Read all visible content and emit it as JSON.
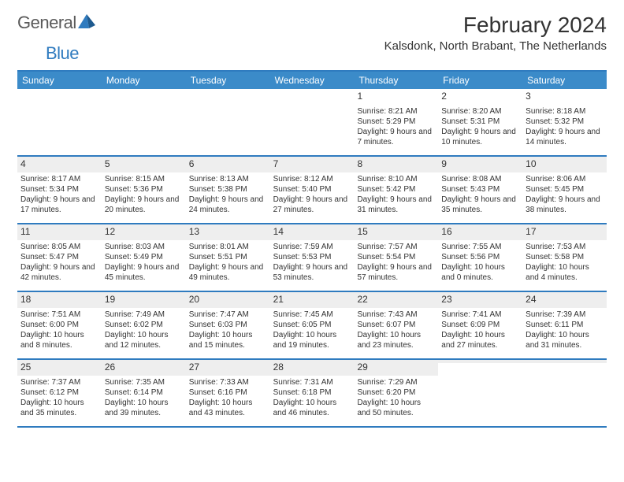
{
  "logo": {
    "text1": "General",
    "text2": "Blue"
  },
  "title": "February 2024",
  "location": "Kalsdonk, North Brabant, The Netherlands",
  "days": [
    "Sunday",
    "Monday",
    "Tuesday",
    "Wednesday",
    "Thursday",
    "Friday",
    "Saturday"
  ],
  "colors": {
    "header_bg": "#3b8bc9",
    "header_border": "#2f7bbf",
    "gray_cell": "#eeeeee",
    "text": "#333333"
  },
  "weeks": [
    [
      {
        "num": "",
        "lines": [
          "",
          "",
          ""
        ]
      },
      {
        "num": "",
        "lines": [
          "",
          "",
          ""
        ]
      },
      {
        "num": "",
        "lines": [
          "",
          "",
          ""
        ]
      },
      {
        "num": "",
        "lines": [
          "",
          "",
          ""
        ]
      },
      {
        "num": "1",
        "lines": [
          "Sunrise: 8:21 AM",
          "Sunset: 5:29 PM",
          "Daylight: 9 hours and 7 minutes."
        ]
      },
      {
        "num": "2",
        "lines": [
          "Sunrise: 8:20 AM",
          "Sunset: 5:31 PM",
          "Daylight: 9 hours and 10 minutes."
        ]
      },
      {
        "num": "3",
        "lines": [
          "Sunrise: 8:18 AM",
          "Sunset: 5:32 PM",
          "Daylight: 9 hours and 14 minutes."
        ]
      }
    ],
    [
      {
        "num": "4",
        "lines": [
          "Sunrise: 8:17 AM",
          "Sunset: 5:34 PM",
          "Daylight: 9 hours and 17 minutes."
        ]
      },
      {
        "num": "5",
        "lines": [
          "Sunrise: 8:15 AM",
          "Sunset: 5:36 PM",
          "Daylight: 9 hours and 20 minutes."
        ]
      },
      {
        "num": "6",
        "lines": [
          "Sunrise: 8:13 AM",
          "Sunset: 5:38 PM",
          "Daylight: 9 hours and 24 minutes."
        ]
      },
      {
        "num": "7",
        "lines": [
          "Sunrise: 8:12 AM",
          "Sunset: 5:40 PM",
          "Daylight: 9 hours and 27 minutes."
        ]
      },
      {
        "num": "8",
        "lines": [
          "Sunrise: 8:10 AM",
          "Sunset: 5:42 PM",
          "Daylight: 9 hours and 31 minutes."
        ]
      },
      {
        "num": "9",
        "lines": [
          "Sunrise: 8:08 AM",
          "Sunset: 5:43 PM",
          "Daylight: 9 hours and 35 minutes."
        ]
      },
      {
        "num": "10",
        "lines": [
          "Sunrise: 8:06 AM",
          "Sunset: 5:45 PM",
          "Daylight: 9 hours and 38 minutes."
        ]
      }
    ],
    [
      {
        "num": "11",
        "lines": [
          "Sunrise: 8:05 AM",
          "Sunset: 5:47 PM",
          "Daylight: 9 hours and 42 minutes."
        ]
      },
      {
        "num": "12",
        "lines": [
          "Sunrise: 8:03 AM",
          "Sunset: 5:49 PM",
          "Daylight: 9 hours and 45 minutes."
        ]
      },
      {
        "num": "13",
        "lines": [
          "Sunrise: 8:01 AM",
          "Sunset: 5:51 PM",
          "Daylight: 9 hours and 49 minutes."
        ]
      },
      {
        "num": "14",
        "lines": [
          "Sunrise: 7:59 AM",
          "Sunset: 5:53 PM",
          "Daylight: 9 hours and 53 minutes."
        ]
      },
      {
        "num": "15",
        "lines": [
          "Sunrise: 7:57 AM",
          "Sunset: 5:54 PM",
          "Daylight: 9 hours and 57 minutes."
        ]
      },
      {
        "num": "16",
        "lines": [
          "Sunrise: 7:55 AM",
          "Sunset: 5:56 PM",
          "Daylight: 10 hours and 0 minutes."
        ]
      },
      {
        "num": "17",
        "lines": [
          "Sunrise: 7:53 AM",
          "Sunset: 5:58 PM",
          "Daylight: 10 hours and 4 minutes."
        ]
      }
    ],
    [
      {
        "num": "18",
        "lines": [
          "Sunrise: 7:51 AM",
          "Sunset: 6:00 PM",
          "Daylight: 10 hours and 8 minutes."
        ]
      },
      {
        "num": "19",
        "lines": [
          "Sunrise: 7:49 AM",
          "Sunset: 6:02 PM",
          "Daylight: 10 hours and 12 minutes."
        ]
      },
      {
        "num": "20",
        "lines": [
          "Sunrise: 7:47 AM",
          "Sunset: 6:03 PM",
          "Daylight: 10 hours and 15 minutes."
        ]
      },
      {
        "num": "21",
        "lines": [
          "Sunrise: 7:45 AM",
          "Sunset: 6:05 PM",
          "Daylight: 10 hours and 19 minutes."
        ]
      },
      {
        "num": "22",
        "lines": [
          "Sunrise: 7:43 AM",
          "Sunset: 6:07 PM",
          "Daylight: 10 hours and 23 minutes."
        ]
      },
      {
        "num": "23",
        "lines": [
          "Sunrise: 7:41 AM",
          "Sunset: 6:09 PM",
          "Daylight: 10 hours and 27 minutes."
        ]
      },
      {
        "num": "24",
        "lines": [
          "Sunrise: 7:39 AM",
          "Sunset: 6:11 PM",
          "Daylight: 10 hours and 31 minutes."
        ]
      }
    ],
    [
      {
        "num": "25",
        "lines": [
          "Sunrise: 7:37 AM",
          "Sunset: 6:12 PM",
          "Daylight: 10 hours and 35 minutes."
        ]
      },
      {
        "num": "26",
        "lines": [
          "Sunrise: 7:35 AM",
          "Sunset: 6:14 PM",
          "Daylight: 10 hours and 39 minutes."
        ]
      },
      {
        "num": "27",
        "lines": [
          "Sunrise: 7:33 AM",
          "Sunset: 6:16 PM",
          "Daylight: 10 hours and 43 minutes."
        ]
      },
      {
        "num": "28",
        "lines": [
          "Sunrise: 7:31 AM",
          "Sunset: 6:18 PM",
          "Daylight: 10 hours and 46 minutes."
        ]
      },
      {
        "num": "29",
        "lines": [
          "Sunrise: 7:29 AM",
          "Sunset: 6:20 PM",
          "Daylight: 10 hours and 50 minutes."
        ]
      },
      {
        "num": "",
        "lines": [
          "",
          "",
          ""
        ]
      },
      {
        "num": "",
        "lines": [
          "",
          "",
          ""
        ]
      }
    ]
  ]
}
